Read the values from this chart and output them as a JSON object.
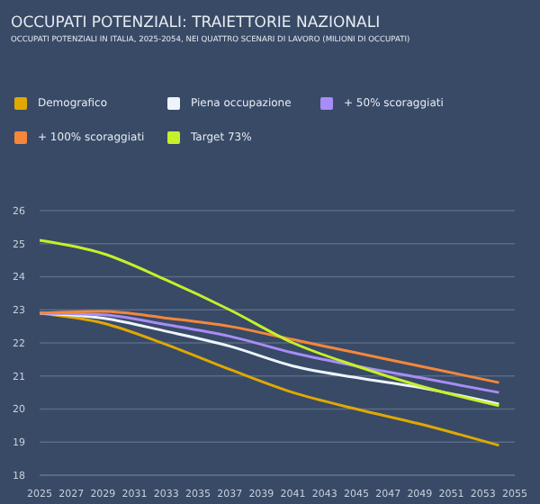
{
  "chart_data": {
    "type": "line",
    "title": "OCCUPATI POTENZIALI: TRAIETTORIE NAZIONALI",
    "subtitle": "OCCUPATI POTENZIALI IN ITALIA, 2025-2054, NEI QUATTRO SCENARI DI LAVORO (MILIONI DI OCCUPATI)",
    "x": [
      2025,
      2029,
      2033,
      2037,
      2041,
      2045,
      2049,
      2054
    ],
    "series": [
      {
        "name": "Demografico",
        "color": "#e0a800",
        "values": [
          22.9,
          22.6,
          21.95,
          21.2,
          20.5,
          20.0,
          19.55,
          18.9
        ]
      },
      {
        "name": "Piena occupazione",
        "color": "#eef4fb",
        "values": [
          22.9,
          22.75,
          22.35,
          21.9,
          21.3,
          20.95,
          20.65,
          20.15
        ]
      },
      {
        "name": "+ 50% scoraggiati",
        "color": "#a98cf5",
        "values": [
          22.9,
          22.85,
          22.55,
          22.2,
          21.7,
          21.3,
          20.95,
          20.5
        ]
      },
      {
        "name": "+ 100% scoraggiati",
        "color": "#f4873a",
        "values": [
          22.9,
          22.95,
          22.75,
          22.5,
          22.1,
          21.7,
          21.3,
          20.8
        ]
      },
      {
        "name": "Target 73%",
        "color": "#c6f02a",
        "values": [
          25.1,
          24.7,
          23.9,
          23.0,
          22.0,
          21.3,
          20.7,
          20.1
        ]
      }
    ],
    "xlim": [
      2025,
      2055
    ],
    "xticks": [
      2025,
      2027,
      2029,
      2031,
      2033,
      2035,
      2037,
      2039,
      2041,
      2043,
      2045,
      2047,
      2049,
      2051,
      2053,
      2055
    ],
    "ylim": [
      18,
      26
    ],
    "yticks": [
      18,
      19,
      20,
      21,
      22,
      23,
      24,
      25,
      26
    ],
    "grid": "y",
    "legend": "top",
    "marker": "none",
    "line_style": "solid"
  }
}
